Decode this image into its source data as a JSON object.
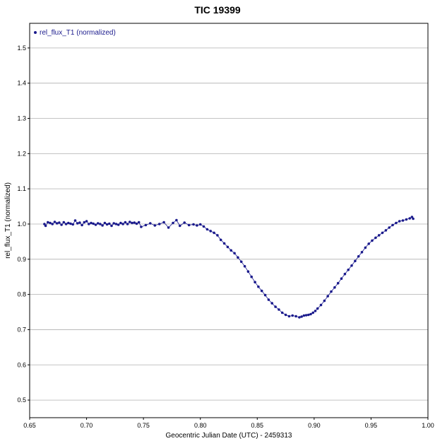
{
  "chart_data": {
    "type": "scatter",
    "title": "TIC 19399",
    "xlabel": "Geocentric Julian Date (UTC) - 2459313",
    "ylabel": "rel_flux_T1 (normalized)",
    "xlim": [
      0.65,
      1.0
    ],
    "ylim": [
      0.45,
      1.57
    ],
    "x_ticks": [
      "0.65",
      "0.70",
      "0.75",
      "0.80",
      "0.85",
      "0.90",
      "0.95",
      "1.00"
    ],
    "y_ticks": [
      "0.5",
      "0.6",
      "0.7",
      "0.8",
      "0.9",
      "1.0",
      "1.1",
      "1.2",
      "1.3",
      "1.4",
      "1.5"
    ],
    "grid": "horizontal",
    "legend_position": "top-left",
    "marker_color": "#1a1a8c",
    "line_color": "#1a1a8c",
    "series": [
      {
        "name": "rel_flux_T1 (normalized)",
        "x": [
          0.663,
          0.664,
          0.666,
          0.668,
          0.67,
          0.672,
          0.674,
          0.676,
          0.678,
          0.68,
          0.682,
          0.684,
          0.686,
          0.688,
          0.69,
          0.692,
          0.694,
          0.696,
          0.698,
          0.7,
          0.702,
          0.704,
          0.706,
          0.708,
          0.71,
          0.712,
          0.714,
          0.716,
          0.718,
          0.72,
          0.722,
          0.724,
          0.726,
          0.728,
          0.73,
          0.732,
          0.734,
          0.736,
          0.738,
          0.74,
          0.742,
          0.744,
          0.746,
          0.748,
          0.752,
          0.756,
          0.76,
          0.764,
          0.768,
          0.772,
          0.776,
          0.779,
          0.782,
          0.786,
          0.79,
          0.794,
          0.797,
          0.8,
          0.803,
          0.806,
          0.809,
          0.812,
          0.815,
          0.818,
          0.821,
          0.824,
          0.827,
          0.83,
          0.833,
          0.836,
          0.839,
          0.842,
          0.845,
          0.848,
          0.851,
          0.854,
          0.857,
          0.86,
          0.863,
          0.866,
          0.869,
          0.872,
          0.875,
          0.878,
          0.881,
          0.884,
          0.887,
          0.889,
          0.891,
          0.893,
          0.895,
          0.897,
          0.899,
          0.901,
          0.903,
          0.906,
          0.909,
          0.912,
          0.915,
          0.918,
          0.921,
          0.924,
          0.927,
          0.93,
          0.933,
          0.936,
          0.939,
          0.942,
          0.945,
          0.948,
          0.951,
          0.954,
          0.957,
          0.96,
          0.963,
          0.966,
          0.969,
          0.972,
          0.975,
          0.978,
          0.981,
          0.984,
          0.986,
          0.987
        ],
        "y": [
          1.0,
          0.995,
          1.005,
          1.003,
          1.0,
          1.006,
          1.002,
          1.004,
          0.998,
          1.005,
          1.0,
          1.003,
          1.001,
          0.999,
          1.01,
          1.002,
          1.004,
          0.997,
          1.005,
          1.008,
          1.0,
          1.003,
          1.001,
          0.998,
          1.002,
          1.0,
          0.996,
          1.003,
          0.999,
          1.001,
          0.995,
          1.002,
          1.0,
          0.998,
          1.003,
          1.0,
          1.005,
          1.0,
          1.006,
          1.003,
          1.004,
          1.001,
          1.005,
          0.992,
          0.997,
          1.002,
          0.996,
          1.0,
          1.005,
          0.99,
          1.003,
          1.011,
          0.995,
          1.004,
          0.997,
          0.999,
          0.996,
          0.999,
          0.993,
          0.985,
          0.98,
          0.975,
          0.968,
          0.955,
          0.945,
          0.935,
          0.925,
          0.917,
          0.905,
          0.893,
          0.88,
          0.865,
          0.85,
          0.835,
          0.822,
          0.81,
          0.798,
          0.785,
          0.775,
          0.765,
          0.757,
          0.748,
          0.742,
          0.738,
          0.74,
          0.738,
          0.735,
          0.737,
          0.74,
          0.741,
          0.742,
          0.744,
          0.748,
          0.753,
          0.76,
          0.77,
          0.782,
          0.795,
          0.808,
          0.82,
          0.832,
          0.845,
          0.858,
          0.87,
          0.882,
          0.895,
          0.908,
          0.92,
          0.933,
          0.944,
          0.953,
          0.961,
          0.968,
          0.975,
          0.982,
          0.99,
          0.997,
          1.003,
          1.008,
          1.01,
          1.013,
          1.016,
          1.02,
          1.015
        ]
      }
    ]
  }
}
